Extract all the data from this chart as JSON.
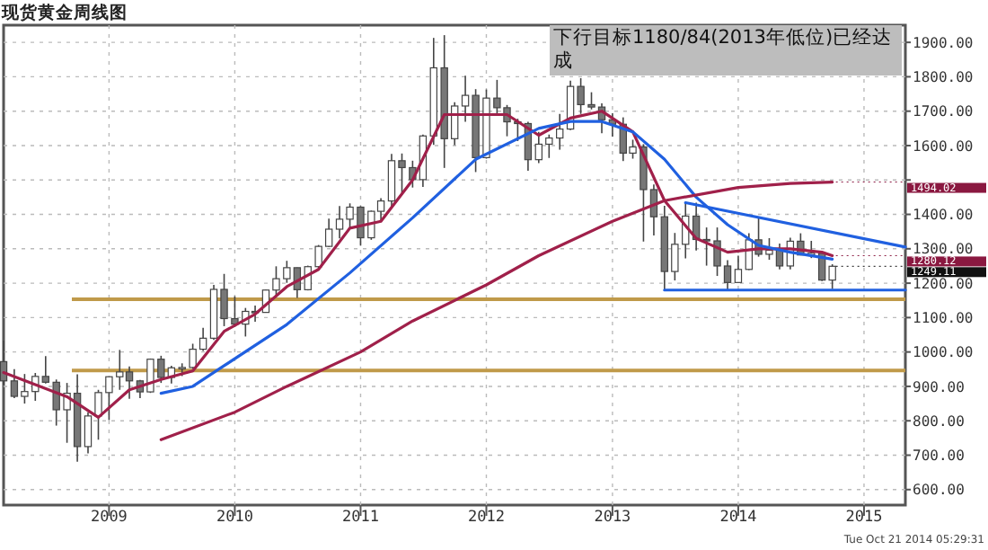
{
  "chart_data": {
    "type": "candlestick",
    "title": "现货黄金周线图",
    "annotations": [
      "下行目标1180/84(2013年低位)已经达成",
      "Tue Oct 21 2014 05:29:31",
      {
        "text": "1494.02",
        "x": "2014-10",
        "y": 1494.02
      },
      {
        "text": "1280.12",
        "x": "2014-10",
        "y": 1280.12
      },
      {
        "text": "1249.11",
        "x": "2014-10",
        "y": 1249.11
      }
    ],
    "x": [
      "2008-03",
      "2008-04",
      "2008-05",
      "2008-06",
      "2008-07",
      "2008-08",
      "2008-09",
      "2008-10",
      "2008-11",
      "2008-12",
      "2009-01",
      "2009-02",
      "2009-03",
      "2009-04",
      "2009-05",
      "2009-06",
      "2009-07",
      "2009-08",
      "2009-09",
      "2009-10",
      "2009-11",
      "2009-12",
      "2010-01",
      "2010-02",
      "2010-03",
      "2010-04",
      "2010-05",
      "2010-06",
      "2010-07",
      "2010-08",
      "2010-09",
      "2010-10",
      "2010-11",
      "2010-12",
      "2011-01",
      "2011-02",
      "2011-03",
      "2011-04",
      "2011-05",
      "2011-06",
      "2011-07",
      "2011-08",
      "2011-09",
      "2011-10",
      "2011-11",
      "2011-12",
      "2012-01",
      "2012-02",
      "2012-03",
      "2012-04",
      "2012-05",
      "2012-06",
      "2012-07",
      "2012-08",
      "2012-09",
      "2012-10",
      "2012-11",
      "2012-12",
      "2013-01",
      "2013-02",
      "2013-03",
      "2013-04",
      "2013-05",
      "2013-06",
      "2013-07",
      "2013-08",
      "2013-09",
      "2013-10",
      "2013-11",
      "2013-12",
      "2014-01",
      "2014-02",
      "2014-03",
      "2014-04",
      "2014-05",
      "2014-06",
      "2014-07",
      "2014-08",
      "2014-09",
      "2014-10"
    ],
    "ohlc": [
      [
        972,
        1033,
        905,
        916
      ],
      [
        916,
        950,
        866,
        871
      ],
      [
        871,
        936,
        850,
        885
      ],
      [
        885,
        939,
        858,
        929
      ],
      [
        929,
        988,
        908,
        912
      ],
      [
        912,
        920,
        786,
        832
      ],
      [
        832,
        910,
        736,
        880
      ],
      [
        880,
        935,
        681,
        725
      ],
      [
        725,
        825,
        705,
        814
      ],
      [
        814,
        890,
        745,
        882
      ],
      [
        882,
        928,
        802,
        928
      ],
      [
        928,
        1006,
        890,
        942
      ],
      [
        942,
        958,
        864,
        916
      ],
      [
        916,
        919,
        866,
        884
      ],
      [
        884,
        981,
        881,
        979
      ],
      [
        979,
        989,
        910,
        926
      ],
      [
        926,
        960,
        908,
        954
      ],
      [
        954,
        967,
        930,
        955
      ],
      [
        955,
        1024,
        952,
        1008
      ],
      [
        1008,
        1070,
        1003,
        1040
      ],
      [
        1040,
        1195,
        1035,
        1182
      ],
      [
        1182,
        1227,
        1075,
        1097
      ],
      [
        1097,
        1162,
        1073,
        1081
      ],
      [
        1081,
        1128,
        1045,
        1118
      ],
      [
        1118,
        1135,
        1088,
        1115
      ],
      [
        1115,
        1181,
        1114,
        1180
      ],
      [
        1180,
        1249,
        1160,
        1213
      ],
      [
        1213,
        1265,
        1201,
        1245
      ],
      [
        1245,
        1245,
        1157,
        1181
      ],
      [
        1181,
        1251,
        1179,
        1248
      ],
      [
        1248,
        1311,
        1241,
        1307
      ],
      [
        1307,
        1388,
        1305,
        1357
      ],
      [
        1357,
        1424,
        1330,
        1386
      ],
      [
        1386,
        1432,
        1360,
        1421
      ],
      [
        1421,
        1424,
        1309,
        1332
      ],
      [
        1332,
        1411,
        1326,
        1409
      ],
      [
        1409,
        1447,
        1381,
        1439
      ],
      [
        1439,
        1576,
        1419,
        1556
      ],
      [
        1556,
        1577,
        1462,
        1536
      ],
      [
        1536,
        1556,
        1478,
        1501
      ],
      [
        1501,
        1632,
        1480,
        1628
      ],
      [
        1628,
        1913,
        1602,
        1826
      ],
      [
        1826,
        1921,
        1535,
        1620
      ],
      [
        1620,
        1726,
        1601,
        1715
      ],
      [
        1715,
        1803,
        1669,
        1746
      ],
      [
        1746,
        1764,
        1523,
        1565
      ],
      [
        1565,
        1763,
        1562,
        1738
      ],
      [
        1738,
        1791,
        1692,
        1710
      ],
      [
        1710,
        1718,
        1627,
        1669
      ],
      [
        1669,
        1678,
        1613,
        1664
      ],
      [
        1664,
        1669,
        1527,
        1559
      ],
      [
        1559,
        1640,
        1549,
        1604
      ],
      [
        1604,
        1632,
        1564,
        1622
      ],
      [
        1622,
        1692,
        1588,
        1648
      ],
      [
        1648,
        1789,
        1645,
        1772
      ],
      [
        1772,
        1796,
        1692,
        1719
      ],
      [
        1719,
        1755,
        1705,
        1712
      ],
      [
        1712,
        1723,
        1636,
        1675
      ],
      [
        1675,
        1694,
        1626,
        1662
      ],
      [
        1662,
        1682,
        1555,
        1578
      ],
      [
        1578,
        1617,
        1562,
        1596
      ],
      [
        1596,
        1604,
        1321,
        1472
      ],
      [
        1472,
        1487,
        1339,
        1393
      ],
      [
        1393,
        1425,
        1180,
        1234
      ],
      [
        1234,
        1346,
        1208,
        1313
      ],
      [
        1313,
        1434,
        1272,
        1395
      ],
      [
        1395,
        1434,
        1295,
        1327
      ],
      [
        1327,
        1362,
        1251,
        1323
      ],
      [
        1323,
        1362,
        1221,
        1250
      ],
      [
        1250,
        1267,
        1182,
        1202
      ],
      [
        1202,
        1280,
        1202,
        1240
      ],
      [
        1240,
        1345,
        1238,
        1326
      ],
      [
        1326,
        1392,
        1277,
        1284
      ],
      [
        1284,
        1331,
        1268,
        1296
      ],
      [
        1296,
        1315,
        1240,
        1250
      ],
      [
        1250,
        1332,
        1240,
        1322
      ],
      [
        1322,
        1345,
        1281,
        1282
      ],
      [
        1282,
        1323,
        1273,
        1287
      ],
      [
        1287,
        1294,
        1206,
        1209
      ],
      [
        1209,
        1255,
        1183,
        1249.11
      ]
    ],
    "series": [
      {
        "type": "line",
        "color": "#a0204a",
        "x": [
          "2008-03",
          "2008-06",
          "2008-09",
          "2008-12",
          "2009-03",
          "2009-06",
          "2009-09",
          "2009-12",
          "2010-03",
          "2010-06",
          "2010-09",
          "2010-12",
          "2011-03",
          "2011-06",
          "2011-09",
          "2011-12",
          "2012-03",
          "2012-06",
          "2012-09",
          "2012-12",
          "2013-03",
          "2013-06",
          "2013-09",
          "2013-12",
          "2014-03",
          "2014-06",
          "2014-09",
          "2014-10"
        ],
        "values": [
          940,
          905,
          870,
          810,
          890,
          920,
          945,
          1060,
          1110,
          1190,
          1240,
          1360,
          1380,
          1500,
          1690,
          1690,
          1690,
          1630,
          1680,
          1700,
          1640,
          1440,
          1330,
          1290,
          1300,
          1300,
          1290,
          1280.12
        ]
      },
      {
        "type": "line",
        "color": "#2060e0",
        "x": [
          "2009-06",
          "2009-09",
          "2009-12",
          "2010-06",
          "2010-12",
          "2011-06",
          "2011-12",
          "2012-06",
          "2012-09",
          "2012-12",
          "2013-03",
          "2013-06",
          "2013-09",
          "2013-12",
          "2014-03",
          "2014-06",
          "2014-10"
        ],
        "values": [
          880,
          900,
          960,
          1080,
          1230,
          1390,
          1560,
          1650,
          1670,
          1670,
          1640,
          1560,
          1450,
          1370,
          1310,
          1290,
          1270
        ]
      },
      {
        "type": "line",
        "color": "#a0204a",
        "x": [
          "2009-06",
          "2010-01",
          "2010-06",
          "2011-01",
          "2011-06",
          "2012-01",
          "2012-06",
          "2013-01",
          "2013-06",
          "2014-01",
          "2014-06",
          "2014-10"
        ],
        "values": [
          745,
          825,
          900,
          1000,
          1090,
          1195,
          1280,
          1380,
          1440,
          1478,
          1490,
          1494.02
        ]
      },
      {
        "type": "line",
        "color": "#2060e0",
        "x": [
          "2013-08",
          "2015-05"
        ],
        "values": [
          1434,
          1305
        ]
      },
      {
        "type": "line",
        "color": "#2060e0",
        "x": [
          "2013-06",
          "2015-05"
        ],
        "values": [
          1180,
          1180
        ]
      }
    ],
    "ref_lines": [
      {
        "axis": "y",
        "value": 1153,
        "color": "#c09a4a"
      },
      {
        "axis": "y",
        "value": 946,
        "color": "#c09a4a"
      }
    ],
    "xlim": [
      "2008-03-01",
      "2015-05-01"
    ],
    "xticks": [
      {
        "value": "2009-01-01",
        "label": "2009"
      },
      {
        "value": "2010-01-01",
        "label": "2010"
      },
      {
        "value": "2011-01-01",
        "label": "2011"
      },
      {
        "value": "2012-01-01",
        "label": "2012"
      },
      {
        "value": "2013-01-01",
        "label": "2013"
      },
      {
        "value": "2014-01-01",
        "label": "2014"
      },
      {
        "value": "2015-01-01",
        "label": "2015"
      }
    ],
    "ylim": [
      555,
      1950
    ],
    "yticks": [
      {
        "value": 600,
        "label": "600.00"
      },
      {
        "value": 700,
        "label": "700.00"
      },
      {
        "value": 800,
        "label": "800.00"
      },
      {
        "value": 900,
        "label": "900.00"
      },
      {
        "value": 1000,
        "label": "1000.00"
      },
      {
        "value": 1100,
        "label": "1100.00"
      },
      {
        "value": 1200,
        "label": "1200.00"
      },
      {
        "value": 1300,
        "label": "1300.00"
      },
      {
        "value": 1400,
        "label": "1400.00"
      },
      {
        "value": 1500,
        "label": null
      },
      {
        "value": 1600,
        "label": "1600.00"
      },
      {
        "value": 1700,
        "label": "1700.00"
      },
      {
        "value": 1800,
        "label": "1800.00"
      },
      {
        "value": 1900,
        "label": "1900.00"
      }
    ],
    "grid": true,
    "line_style": "solid"
  }
}
